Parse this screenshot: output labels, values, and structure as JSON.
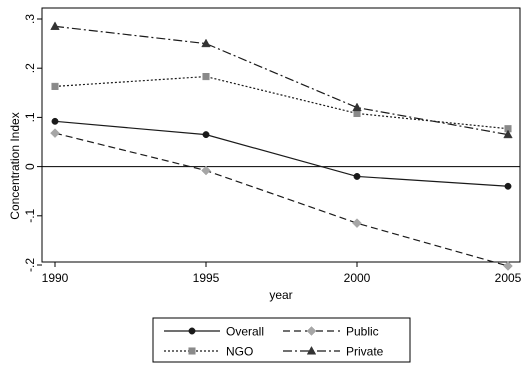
{
  "chart_data": {
    "type": "line",
    "title": "",
    "xlabel": "year",
    "ylabel": "Concentration Index",
    "x": [
      1990,
      1995,
      2000,
      2005
    ],
    "x_ticks": [
      "1990",
      "1995",
      "2000",
      "2005"
    ],
    "y_ticks": [
      {
        "value": -0.2,
        "label": "-.2"
      },
      {
        "value": -0.1,
        "label": "-.1"
      },
      {
        "value": 0,
        "label": "0"
      },
      {
        "value": 0.1,
        "label": ".1"
      },
      {
        "value": 0.2,
        "label": ".2"
      },
      {
        "value": 0.3,
        "label": ".3"
      }
    ],
    "xlim": [
      1990,
      2005
    ],
    "ylim": [
      -0.22,
      0.31
    ],
    "reference_line_y": 0,
    "grid": false,
    "legend_position": "bottom",
    "series": [
      {
        "name": "Overall",
        "values": [
          0.092,
          0.065,
          -0.02,
          -0.04
        ],
        "color": "#1a1a1a",
        "marker": "circle",
        "dash": "solid"
      },
      {
        "name": "Public",
        "values": [
          0.068,
          -0.008,
          -0.115,
          -0.202
        ],
        "color": "#a6a6a6",
        "marker": "diamond",
        "dash": "dashed",
        "line_color": "#1a1a1a"
      },
      {
        "name": "NGO",
        "values": [
          0.163,
          0.183,
          0.108,
          0.077
        ],
        "color": "#8a8a8a",
        "marker": "square",
        "dash": "dotted",
        "line_color": "#1a1a1a"
      },
      {
        "name": "Private",
        "values": [
          0.285,
          0.25,
          0.12,
          0.065
        ],
        "color": "#333333",
        "marker": "triangle",
        "dash": "dashdot",
        "line_color": "#1a1a1a"
      }
    ]
  }
}
